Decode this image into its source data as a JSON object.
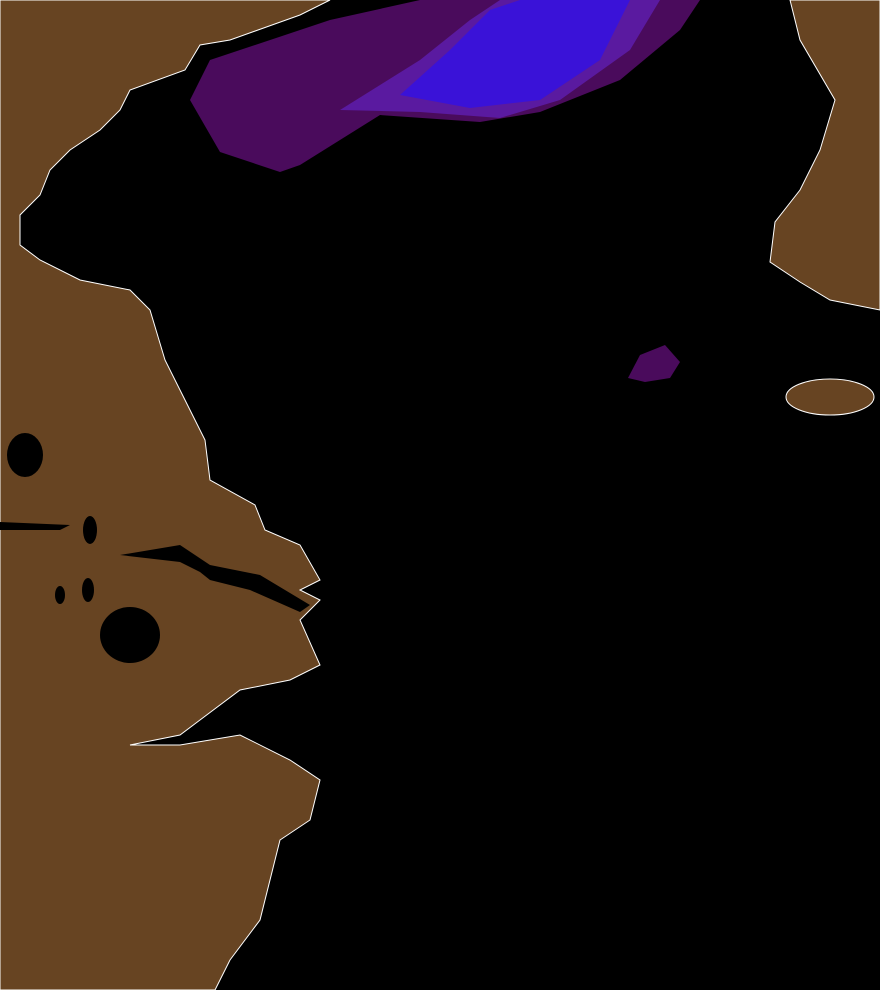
{
  "map": {
    "colors": {
      "sea": "#000000",
      "land": "#674422",
      "coastline": "#ffffff",
      "low_value": "#4a0b5c",
      "mid_value": "#5a1aa0",
      "high_value": "#3a12d8"
    },
    "regions": [
      "china-mainland",
      "korean-peninsula",
      "jeju-island",
      "yellow-sea-data-plume",
      "small-data-patch"
    ]
  }
}
